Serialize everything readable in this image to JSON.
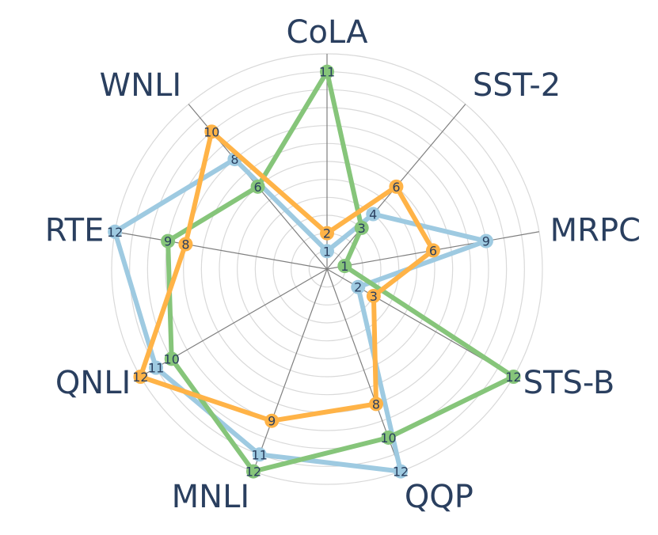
{
  "chart_data": {
    "type": "radar",
    "title": "",
    "axes": [
      "CoLA",
      "SST-2",
      "MRPC",
      "STS-B",
      "QQP",
      "MNLI",
      "QNLI",
      "RTE",
      "WNLI"
    ],
    "radial_range": [
      0,
      12
    ],
    "grid": true,
    "legend": "none",
    "series": [
      {
        "color": "#9ecae1",
        "values": [
          1,
          4,
          9,
          2,
          12,
          11,
          11,
          12,
          8
        ]
      },
      {
        "color": "#86c57a",
        "values": [
          11,
          3,
          1,
          12,
          10,
          12,
          10,
          9,
          6
        ]
      },
      {
        "color": "#ffb347",
        "values": [
          2,
          6,
          6,
          3,
          8,
          9,
          12,
          8,
          10
        ]
      }
    ]
  }
}
